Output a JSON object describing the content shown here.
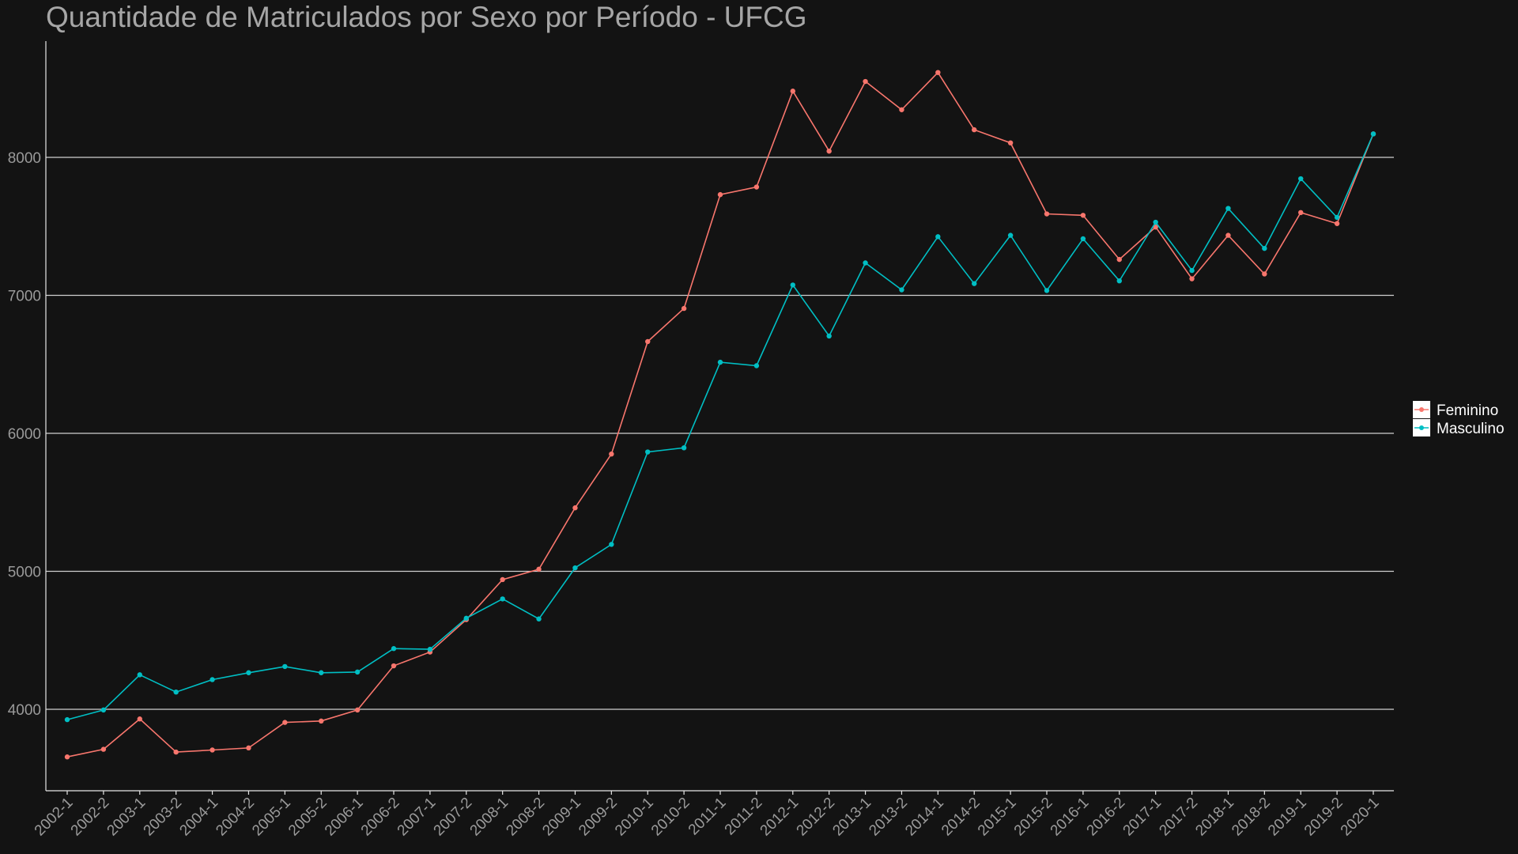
{
  "chart_data": {
    "type": "line",
    "title": "Quantidade de Matriculados por Sexo por Período - UFCG",
    "xlabel": "",
    "ylabel": "",
    "ylim": [
      3400,
      8950
    ],
    "yticks": [
      4000,
      5000,
      6000,
      7000,
      8000
    ],
    "grid": "horizontal",
    "legend_position": "right",
    "categories": [
      "2002-1",
      "2002-2",
      "2003-1",
      "2003-2",
      "2004-1",
      "2004-2",
      "2005-1",
      "2005-2",
      "2006-1",
      "2006-2",
      "2007-1",
      "2007-2",
      "2008-1",
      "2008-2",
      "2009-1",
      "2009-2",
      "2010-1",
      "2010-2",
      "2011-1",
      "2011-2",
      "2012-1",
      "2012-2",
      "2013-1",
      "2013-2",
      "2014-1",
      "2014-2",
      "2015-1",
      "2015-2",
      "2016-1",
      "2016-2",
      "2017-1",
      "2017-2",
      "2018-1",
      "2018-2",
      "2019-1",
      "2019-2",
      "2020-1"
    ],
    "series": [
      {
        "name": "Feminino",
        "color": "#f8766d",
        "values": [
          3655,
          3710,
          3930,
          3690,
          3705,
          3720,
          3905,
          3915,
          3995,
          4315,
          4415,
          4650,
          4940,
          5015,
          5460,
          5850,
          6665,
          6905,
          7730,
          7785,
          8480,
          8045,
          8550,
          8345,
          8615,
          8200,
          8105,
          7590,
          7580,
          7260,
          7495,
          7120,
          7435,
          7155,
          7600,
          7520,
          8170
        ]
      },
      {
        "name": "Masculino",
        "color": "#00bfc4",
        "values": [
          3925,
          3995,
          4250,
          4125,
          4215,
          4265,
          4310,
          4265,
          4270,
          4440,
          4435,
          4660,
          4800,
          4655,
          5025,
          5195,
          5865,
          5895,
          6515,
          6490,
          7075,
          6705,
          7235,
          7040,
          7425,
          7085,
          7435,
          7035,
          7410,
          7105,
          7530,
          7180,
          7630,
          7340,
          7845,
          7565,
          8170
        ]
      }
    ]
  }
}
